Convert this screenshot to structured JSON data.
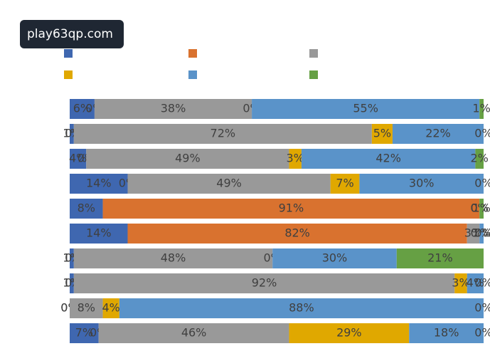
{
  "watermark": "play63qp.com",
  "chart_data": {
    "type": "stacked_bar_horizontal",
    "categories": [
      null,
      null,
      null,
      null,
      null,
      null,
      null,
      null,
      null,
      null
    ],
    "xlim": [
      0,
      100
    ],
    "series": [
      {
        "color": "#3f67b0",
        "values": [
          6,
          1,
          4,
          14,
          8,
          14,
          1,
          1,
          0,
          7
        ],
        "value_labels": [
          "6%",
          "1%",
          "4%",
          "14%",
          "8%",
          "14%",
          "1%",
          "1%",
          "0%",
          "7%"
        ]
      },
      {
        "color": "#d9722f",
        "values": [
          0,
          0,
          0,
          0,
          91,
          82,
          0,
          0,
          0,
          0
        ],
        "value_labels": [
          "0%",
          "0%",
          "0%",
          "0%",
          "91%",
          "82%",
          "0%",
          "0%",
          "0%",
          "0%"
        ]
      },
      {
        "color": "#999999",
        "values": [
          38,
          72,
          49,
          49,
          0,
          3,
          48,
          92,
          8,
          46
        ],
        "value_labels": [
          "38%",
          "72%",
          "49%",
          "49%",
          "0%",
          "3%",
          "48%",
          "92%",
          "8%",
          "46%"
        ]
      },
      {
        "color": "#e0a800",
        "values": [
          0,
          5,
          3,
          7,
          0,
          0,
          0,
          3,
          4,
          29
        ],
        "value_labels": [
          "0%",
          "5%",
          "3%",
          "7%",
          "0%",
          "0%",
          "0%",
          "3%",
          "4%",
          "29%"
        ]
      },
      {
        "color": "#5a93c9",
        "values": [
          55,
          22,
          42,
          30,
          0,
          1,
          30,
          4,
          88,
          18
        ],
        "value_labels": [
          "55%",
          "22%",
          "42%",
          "30%",
          "0%",
          "1%",
          "30%",
          "4%",
          "88%",
          "18%"
        ]
      },
      {
        "color": "#66a044",
        "values": [
          1,
          0,
          2,
          0,
          1,
          0,
          21,
          0,
          0,
          0
        ],
        "value_labels": [
          "1%",
          "0%",
          "2%",
          "0%",
          "1%",
          "0%",
          "21%",
          "0%",
          "0%",
          "0%"
        ]
      }
    ]
  }
}
